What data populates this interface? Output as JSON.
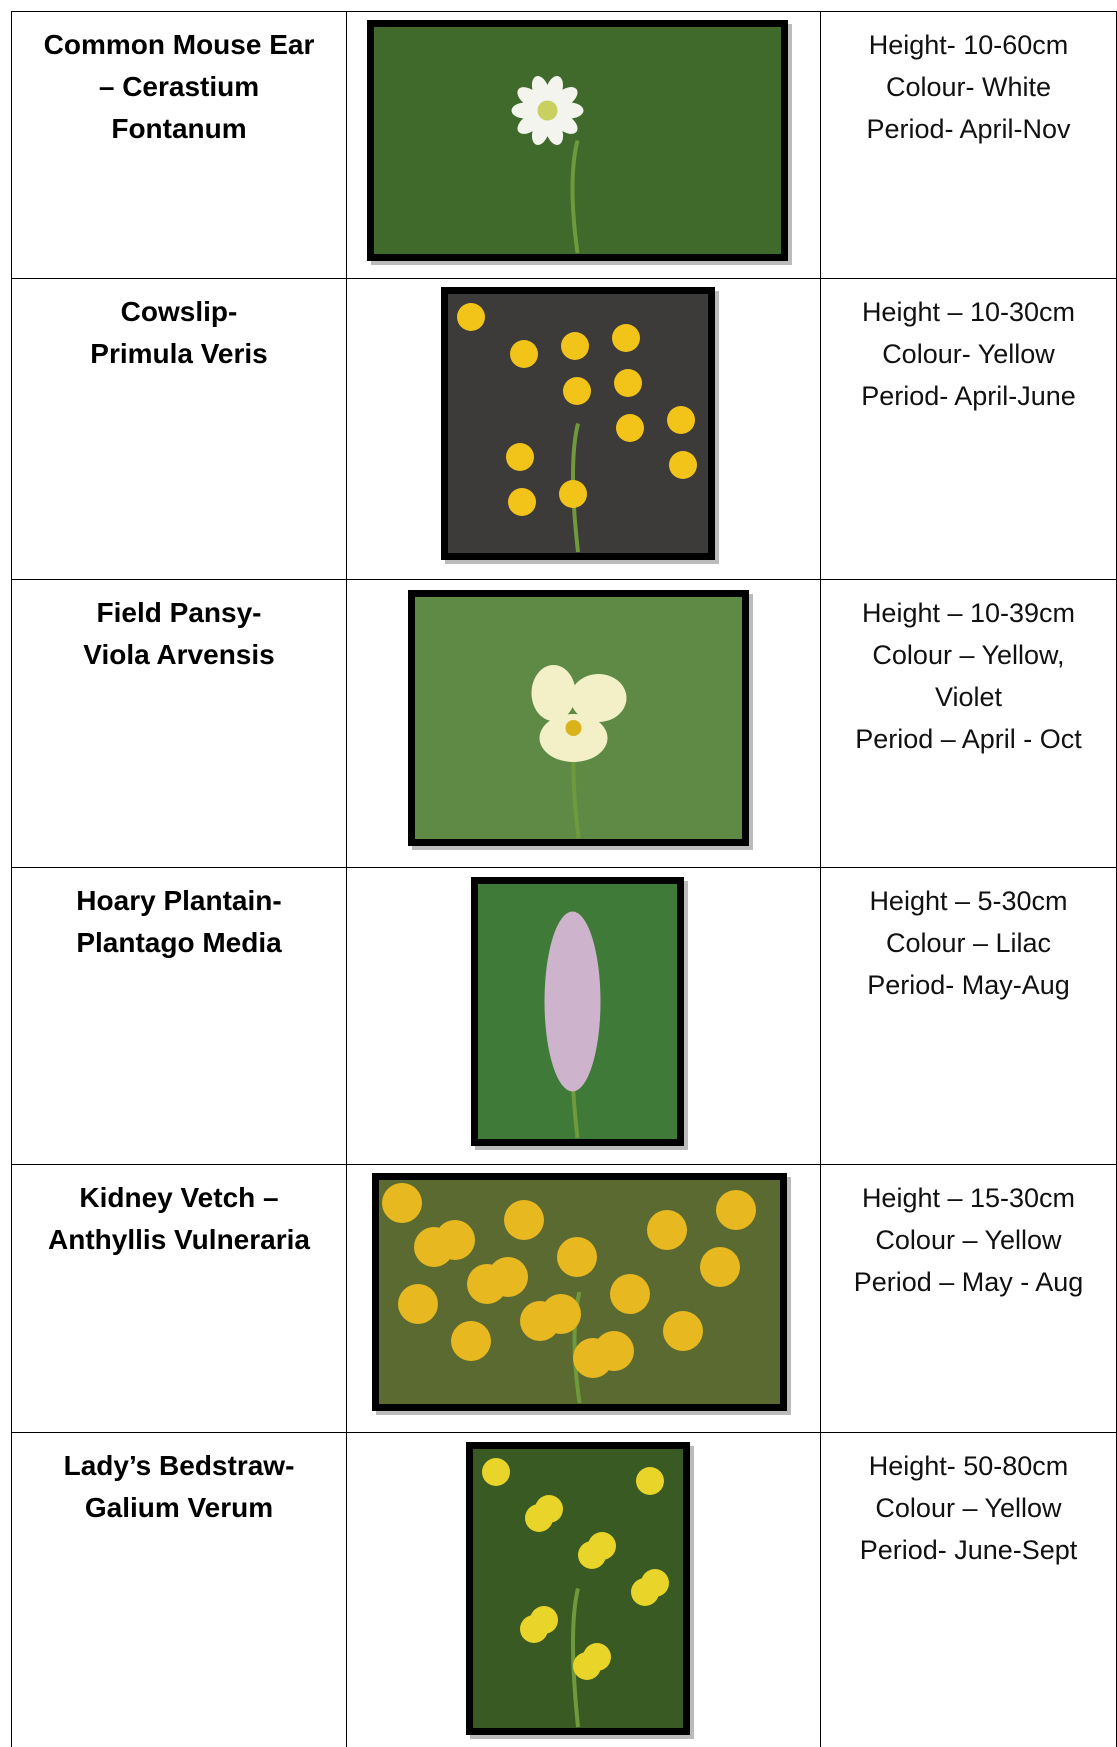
{
  "table": {
    "rows": [
      {
        "name": [
          "Common Mouse Ear",
          "– Cerastium",
          "Fontanum"
        ],
        "details": [
          "Height- 10-60cm",
          "Colour- White",
          "Period- April-Nov"
        ]
      },
      {
        "name": [
          "Cowslip-",
          "Primula Veris"
        ],
        "details": [
          "Height – 10-30cm",
          "Colour- Yellow",
          "Period- April-June"
        ]
      },
      {
        "name": [
          "Field Pansy-",
          "Viola Arvensis"
        ],
        "details": [
          "Height – 10-39cm",
          "Colour – Yellow,",
          "Violet",
          "Period – April - Oct"
        ]
      },
      {
        "name": [
          "Hoary Plantain-",
          "Plantago Media"
        ],
        "details": [
          "Height – 5-30cm",
          "Colour – Lilac",
          "Period- May-Aug"
        ]
      },
      {
        "name": [
          "Kidney Vetch –",
          "Anthyllis Vulneraria"
        ],
        "details": [
          "Height – 15-30cm",
          "Colour – Yellow",
          "Period – May - Aug"
        ]
      },
      {
        "name": [
          "Lady’s Bedstraw-",
          "Galium Verum"
        ],
        "details": [
          "Height- 50-80cm",
          "Colour – Yellow",
          "Period- June-Sept"
        ]
      }
    ]
  }
}
